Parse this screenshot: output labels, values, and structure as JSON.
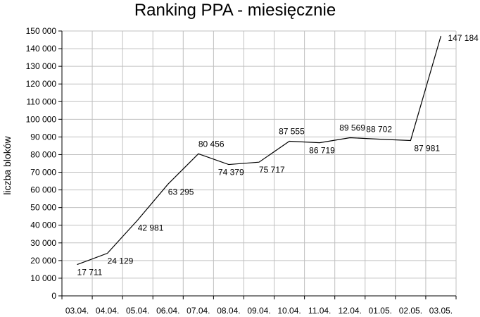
{
  "chart_data": {
    "type": "line",
    "title": "Ranking PPA - miesięcznie",
    "xlabel": "",
    "ylabel": "liczba blokow",
    "ylabel_display": "liczba bloków",
    "ylim": [
      0,
      150000
    ],
    "ytick_step": 10000,
    "ytick_labels": [
      "0",
      "10 000",
      "20 000",
      "30 000",
      "40 000",
      "50 000",
      "60 000",
      "70 000",
      "80 000",
      "90 000",
      "100 000",
      "110 000",
      "120 000",
      "130 000",
      "140 000",
      "150 000"
    ],
    "categories": [
      "03.04.",
      "04.04.",
      "05.04.",
      "06.04.",
      "07.04.",
      "08.04.",
      "09.04.",
      "10.04.",
      "11.04.",
      "12.04.",
      "01.05.",
      "02.05.",
      "03.05."
    ],
    "values": [
      17711,
      24129,
      42981,
      63295,
      80456,
      74379,
      75717,
      87555,
      86719,
      89569,
      88702,
      87981,
      147184
    ],
    "point_labels": [
      "17 711",
      "24 129",
      "42 981",
      "63 295",
      "80 456",
      "74 379",
      "75 717",
      "87 555",
      "86 719",
      "89 569",
      "88 702",
      "87 981",
      "147 184"
    ],
    "grid": true,
    "legend": "none",
    "line_color": "#000000",
    "grid_color": "#c0c0c0"
  }
}
